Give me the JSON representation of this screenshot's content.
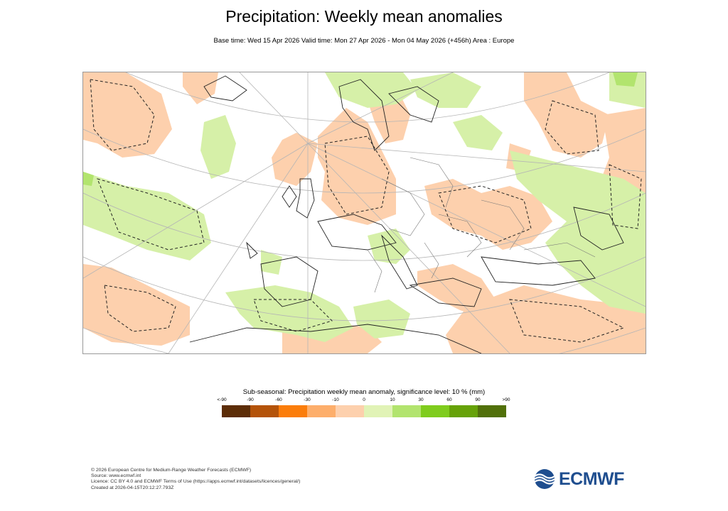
{
  "header": {
    "title": "Precipitation: Weekly mean anomalies",
    "subtitle": "Base time: Wed 15 Apr 2026 Valid time: Mon 27 Apr 2026 - Mon 04 May 2026 (+456h) Area : Europe"
  },
  "map": {
    "region": "Europe",
    "anomaly_colors": {
      "dry_light": "#fdd0ad",
      "wet_light": "#d6f0a8",
      "wet_medium": "#b2e46e"
    },
    "significance_contour": "dashed"
  },
  "legend": {
    "title": "Sub-seasonal: Precipitation weekly mean anomaly, significance level: 10 % (mm)",
    "ticks": [
      "<-90",
      "-90",
      "-60",
      "-30",
      "-10",
      "0",
      "10",
      "30",
      "60",
      "90",
      ">90"
    ],
    "colors": [
      "#5c2d07",
      "#b45309",
      "#fb7d0b",
      "#fdae6b",
      "#fdd0ad",
      "#e1f3b6",
      "#b2e46e",
      "#7fcc1d",
      "#66a208",
      "#51700a"
    ]
  },
  "footer": {
    "lines": [
      "© 2026 European Centre for Medium-Range Weather Forecasts (ECMWF)",
      "Source: www.ecmwf.int",
      "Licence: CC BY 4.0 and ECMWF Terms of Use (https://apps.ecmwf.int/datasets/licences/general/)",
      "Created at 2026-04-15T20:12:27.793Z"
    ]
  },
  "logo": {
    "text": "ECMWF",
    "color": "#1f4e8f"
  }
}
